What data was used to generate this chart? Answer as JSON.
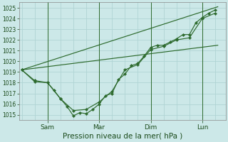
{
  "background_color": "#cce8e8",
  "plot_bg_color": "#cce8e8",
  "grid_color": "#b0d4d4",
  "line_color": "#2d6a2d",
  "marker_color": "#2d6a2d",
  "title": "Pression niveau de la mer( hPa )",
  "ylim": [
    1014.5,
    1025.5
  ],
  "yticks": [
    1015,
    1016,
    1017,
    1018,
    1019,
    1020,
    1021,
    1022,
    1023,
    1024,
    1025
  ],
  "xlim": [
    -0.1,
    7.9
  ],
  "line_straight_top": {
    "x": [
      0.0,
      7.6
    ],
    "y": [
      1019.2,
      1025.1
    ]
  },
  "line_straight_bottom": {
    "x": [
      0.0,
      7.6
    ],
    "y": [
      1019.2,
      1021.5
    ]
  },
  "line_curved": {
    "x": [
      0.0,
      0.5,
      1.0,
      1.25,
      1.5,
      1.75,
      2.0,
      2.25,
      2.5,
      2.75,
      3.0,
      3.25,
      3.5,
      3.75,
      4.0,
      4.25,
      4.5,
      4.75,
      5.0,
      5.25,
      5.5,
      5.75,
      6.0,
      6.25,
      6.5,
      6.75,
      7.0,
      7.25,
      7.5
    ],
    "y": [
      1019.2,
      1018.2,
      1018.0,
      1017.3,
      1016.5,
      1015.8,
      1014.9,
      1015.2,
      1015.1,
      1015.5,
      1016.0,
      1016.8,
      1017.0,
      1018.3,
      1018.8,
      1019.6,
      1019.8,
      1020.5,
      1021.3,
      1021.5,
      1021.5,
      1021.8,
      1022.1,
      1022.5,
      1022.5,
      1023.6,
      1024.1,
      1024.5,
      1024.8
    ]
  },
  "line_middle": {
    "x": [
      0.0,
      0.5,
      1.0,
      1.5,
      2.0,
      2.5,
      3.0,
      3.5,
      4.0,
      4.5,
      5.0,
      5.5,
      6.0,
      6.5,
      7.0,
      7.5
    ],
    "y": [
      1019.2,
      1018.1,
      1018.0,
      1016.5,
      1015.4,
      1015.5,
      1016.2,
      1017.2,
      1019.2,
      1019.7,
      1021.1,
      1021.4,
      1022.0,
      1022.2,
      1024.0,
      1024.5
    ]
  },
  "vlines_x": [
    1,
    3,
    5,
    7
  ],
  "xtick_positions": [
    0.5,
    1,
    2,
    3,
    4,
    5,
    6,
    7,
    7.5
  ],
  "xtick_labels_major": {
    "1": "Sam",
    "3": "Mar",
    "5": "Dim",
    "7": "Lun"
  },
  "font_color": "#1a4a1a",
  "title_fontsize": 7.5,
  "ytick_fontsize": 5.5,
  "xtick_fontsize": 6.5
}
